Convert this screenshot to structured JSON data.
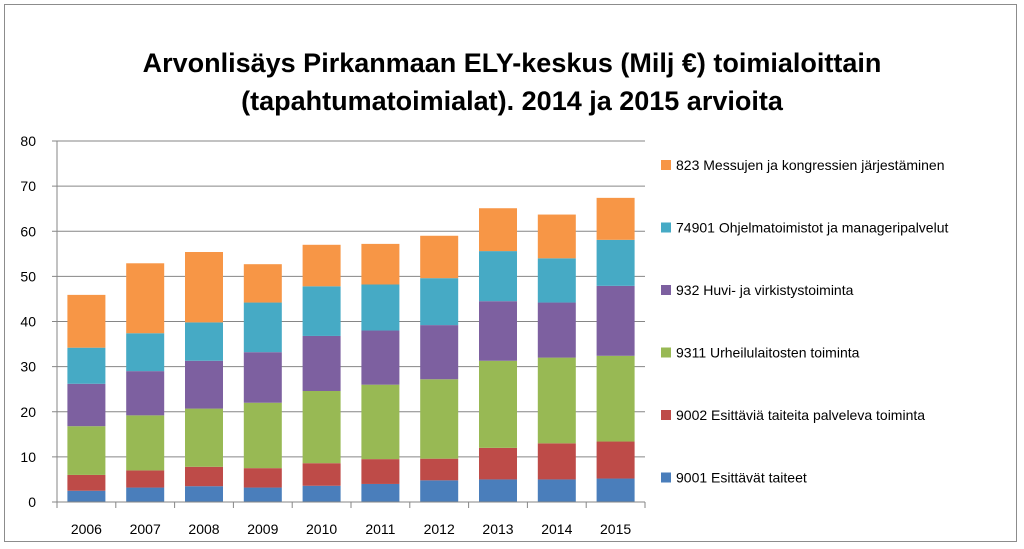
{
  "chart_data": {
    "type": "bar",
    "stacked": true,
    "title": "Arvonlisäys Pirkanmaan ELY-keskus (Milj €) toimialoittain",
    "subtitle": "(tapahtumatoimialat). 2014 ja 2015  arvioita",
    "xlabel": "",
    "ylabel": "",
    "ylim": [
      0,
      80
    ],
    "yticks": [
      "0",
      "10",
      "20",
      "30",
      "40",
      "50",
      "60",
      "70",
      "80"
    ],
    "grid": true,
    "legend_position": "right",
    "categories": [
      "2006",
      "2007",
      "2008",
      "2009",
      "2010",
      "2011",
      "2012",
      "2013",
      "2014",
      "2015"
    ],
    "series": [
      {
        "name": "9001 Esittävät taiteet",
        "color": "#4a7ebb",
        "values": [
          2.5,
          3.2,
          3.5,
          3.2,
          3.6,
          4.0,
          4.8,
          5.0,
          5.0,
          5.2
        ]
      },
      {
        "name": "9002 Esittäviä taiteita palveleva toiminta",
        "color": "#be4b48",
        "values": [
          3.5,
          3.8,
          4.3,
          4.3,
          5.0,
          5.5,
          4.8,
          7.0,
          8.0,
          8.2
        ]
      },
      {
        "name": "9311 Urheilulaitosten toiminta",
        "color": "#98b954",
        "values": [
          10.8,
          12.2,
          12.9,
          14.5,
          16.0,
          16.5,
          17.6,
          19.3,
          19.0,
          19.0
        ]
      },
      {
        "name": "932 Huvi- ja virkistystoiminta",
        "color": "#7d60a0",
        "values": [
          9.4,
          9.8,
          10.6,
          11.2,
          12.2,
          12.0,
          12.0,
          13.2,
          12.2,
          15.5
        ]
      },
      {
        "name": "74901 Ohjelmatoimistot ja manageripalvelut",
        "color": "#46aac5",
        "values": [
          8.0,
          8.4,
          8.5,
          11.0,
          11.0,
          10.2,
          10.4,
          11.1,
          9.8,
          10.2
        ]
      },
      {
        "name": "823 Messujen ja kongressien järjestäminen",
        "color": "#f79646",
        "values": [
          11.7,
          15.5,
          15.6,
          8.5,
          9.2,
          9.0,
          9.4,
          9.5,
          9.7,
          9.3
        ]
      }
    ]
  }
}
